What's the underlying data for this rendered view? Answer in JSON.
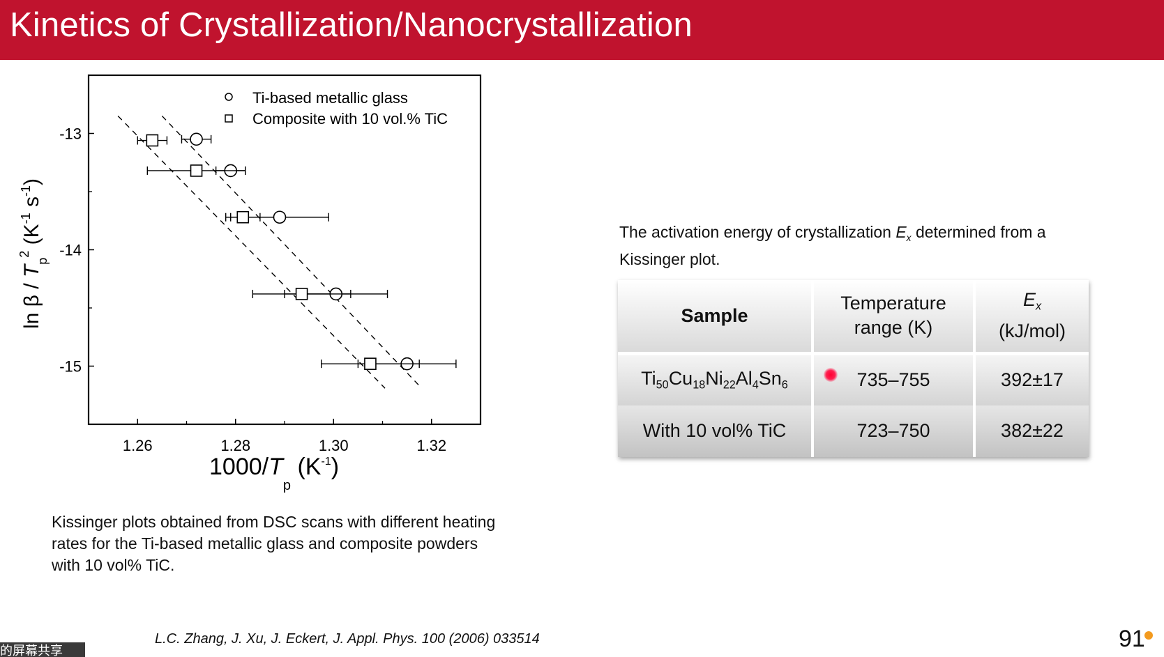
{
  "slide": {
    "title": "Kinetics of Crystallization/Nanocrystallization",
    "page_number": "91",
    "reference": "L.C. Zhang, J. Xu, J. Eckert, J. Appl. Phys. 100 (2006) 033514",
    "caption": "Kissinger plots obtained from DSC scans with different heating rates for the Ti-based metallic glass and composite powders with 10 vol% TiC.",
    "description_before": "The activation energy of crystallization ",
    "description_symbol": "E",
    "description_symbol_sub": "x",
    "description_after": " determined from a Kissinger plot.",
    "share_badge": "的屏幕共享"
  },
  "table": {
    "headers": {
      "sample": "Sample",
      "temp_line1": "Temperature",
      "temp_line2": "range (K)",
      "ex_symbol": "E",
      "ex_sub": "x",
      "ex_unit": "(kJ/mol)"
    },
    "rows": [
      {
        "sample_parts": [
          "Ti",
          "50",
          "Cu",
          "18",
          "Ni",
          "22",
          "Al",
          "4",
          "Sn",
          "6"
        ],
        "range": "735–755",
        "ex": "392±17"
      },
      {
        "sample": "With 10 vol% TiC",
        "range": "723–750",
        "ex": "382±22"
      }
    ]
  },
  "chart_data": {
    "type": "scatter",
    "xlabel": "1000/T_p (K^-1)",
    "ylabel": "ln β / T_p^2 (K^-1 s^-1)",
    "xlim": [
      1.25,
      1.33
    ],
    "ylim": [
      -15.5,
      -12.5
    ],
    "x_ticks": [
      "1.26",
      "1.28",
      "1.30",
      "1.32"
    ],
    "y_ticks": [
      "-13",
      "-14",
      "-15"
    ],
    "legend_position": "top-right",
    "series": [
      {
        "name": "Ti-based metallic glass",
        "marker": "circle",
        "x": [
          1.272,
          1.279,
          1.289,
          1.3005,
          1.315
        ],
        "y": [
          -13.05,
          -13.32,
          -13.72,
          -14.38,
          -14.98
        ],
        "xerr": [
          0.003,
          0.003,
          0.01,
          0.0105,
          0.01
        ],
        "fit_x": [
          1.265,
          1.318
        ],
        "fit_y": [
          -12.85,
          -15.19
        ]
      },
      {
        "name": "Composite with 10 vol.% TiC",
        "marker": "square",
        "x": [
          1.263,
          1.272,
          1.2815,
          1.2935,
          1.3075
        ],
        "y": [
          -13.06,
          -13.32,
          -13.72,
          -14.38,
          -14.98
        ],
        "xerr": [
          0.003,
          0.01,
          0.0035,
          0.01,
          0.01
        ],
        "fit_x": [
          1.256,
          1.3105
        ],
        "fit_y": [
          -12.85,
          -15.19
        ]
      }
    ]
  }
}
